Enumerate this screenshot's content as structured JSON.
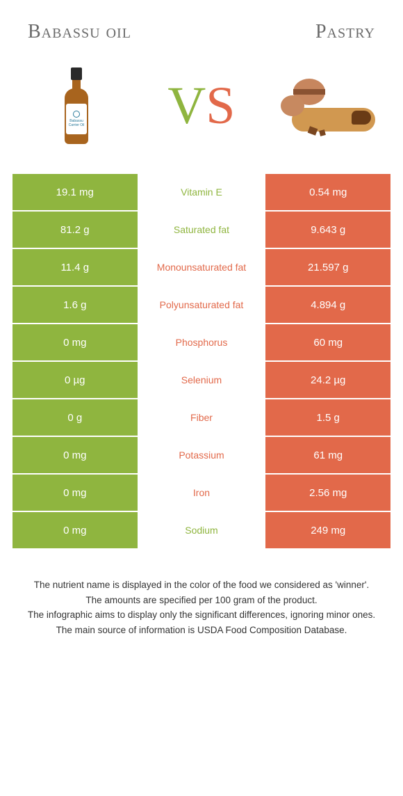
{
  "header": {
    "left_title": "Babassu oil",
    "right_title": "Pastry"
  },
  "vs": {
    "v": "V",
    "s": "S"
  },
  "colors": {
    "left": "#8fb53f",
    "right": "#e2694a",
    "text_white": "#ffffff"
  },
  "nutrients": [
    {
      "name": "Vitamin E",
      "left": "19.1 mg",
      "right": "0.54 mg",
      "winner": "left"
    },
    {
      "name": "Saturated fat",
      "left": "81.2 g",
      "right": "9.643 g",
      "winner": "left"
    },
    {
      "name": "Monounsaturated fat",
      "left": "11.4 g",
      "right": "21.597 g",
      "winner": "right"
    },
    {
      "name": "Polyunsaturated fat",
      "left": "1.6 g",
      "right": "4.894 g",
      "winner": "right"
    },
    {
      "name": "Phosphorus",
      "left": "0 mg",
      "right": "60 mg",
      "winner": "right"
    },
    {
      "name": "Selenium",
      "left": "0 µg",
      "right": "24.2 µg",
      "winner": "right"
    },
    {
      "name": "Fiber",
      "left": "0 g",
      "right": "1.5 g",
      "winner": "right"
    },
    {
      "name": "Potassium",
      "left": "0 mg",
      "right": "61 mg",
      "winner": "right"
    },
    {
      "name": "Iron",
      "left": "0 mg",
      "right": "2.56 mg",
      "winner": "right"
    },
    {
      "name": "Sodium",
      "left": "0 mg",
      "right": "249 mg",
      "winner": "left"
    }
  ],
  "footnotes": [
    "The nutrient name is displayed in the color of the food we considered as 'winner'.",
    "The amounts are specified per 100 gram of the product.",
    "The infographic aims to display only the significant differences, ignoring minor ones.",
    "The main source of information is USDA Food Composition Database."
  ]
}
